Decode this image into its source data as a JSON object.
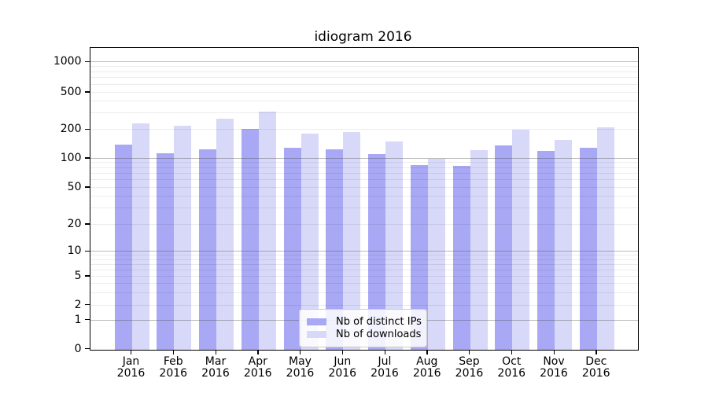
{
  "figure": {
    "background": "#ffffff"
  },
  "chart_data": {
    "type": "bar",
    "title": "idiogram 2016",
    "x_categories": [
      "Jan",
      "Feb",
      "Mar",
      "Apr",
      "May",
      "Jun",
      "Jul",
      "Aug",
      "Sep",
      "Oct",
      "Nov",
      "Dec"
    ],
    "x_sublabel": "2016",
    "series": [
      {
        "name": "Nb of distinct IPs",
        "color": "#a8a8f5",
        "values": [
          139,
          113,
          125,
          204,
          130,
          124,
          111,
          86,
          84,
          137,
          120,
          130
        ]
      },
      {
        "name": "Nb of downloads",
        "color": "#d8d8f8",
        "values": [
          237,
          223,
          266,
          312,
          182,
          190,
          152,
          100,
          122,
          202,
          158,
          212
        ]
      }
    ],
    "yscale": "symlog",
    "ylim": [
      0,
      1400
    ],
    "y_ticks": [
      0,
      1,
      2,
      5,
      10,
      20,
      50,
      100,
      200,
      500,
      1000
    ],
    "y_major_gridlines": [
      1,
      10,
      100,
      1000
    ],
    "y_minor_gridlines": [
      2,
      3,
      4,
      5,
      6,
      7,
      8,
      9,
      20,
      30,
      40,
      50,
      60,
      70,
      80,
      90,
      200,
      300,
      400,
      500,
      600,
      700,
      800,
      900
    ],
    "grid": "on",
    "legend_position": "lower center"
  },
  "colors": {
    "series_ips": "#a8a8f5",
    "series_downloads": "#d8d8f8",
    "major_grid": "#bdbdbd",
    "minor_grid": "#e9e9e9",
    "spine": "#000000"
  }
}
